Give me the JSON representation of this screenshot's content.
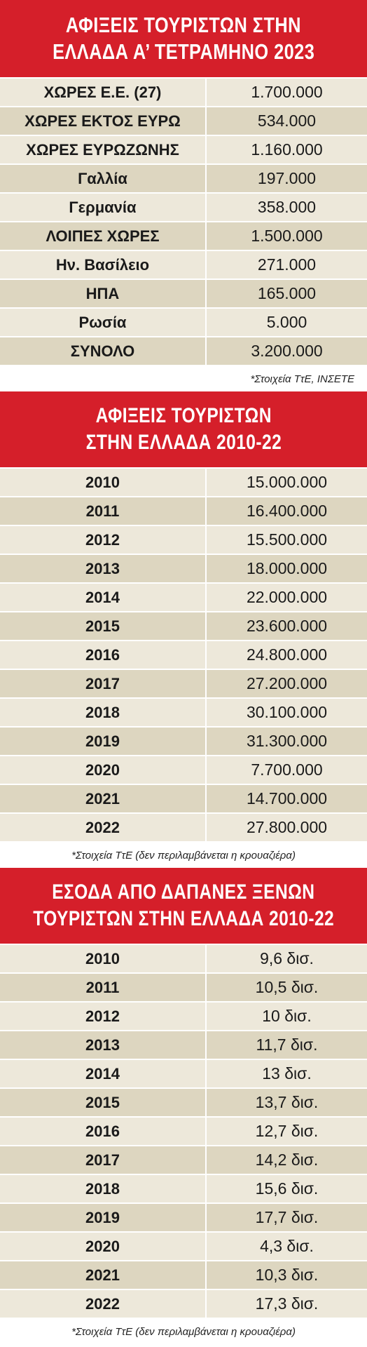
{
  "colors": {
    "header_bg": "#d51f2a",
    "row_light": "#ede8da",
    "row_dark": "#ddd6c0"
  },
  "chart_data": [
    {
      "type": "table",
      "title": [
        "ΑΦΙΞΕΙΣ ΤΟΥΡΙΣΤΩΝ ΣΤΗΝ",
        "ΕΛΛΑΔΑ Α’ ΤΕΤΡΑΜΗΝΟ 2023"
      ],
      "rows": [
        {
          "label": "ΧΩΡΕΣ Ε.Ε. (27)",
          "value": "1.700.000"
        },
        {
          "label": "ΧΩΡΕΣ ΕΚΤΟΣ ΕΥΡΩ",
          "value": "534.000"
        },
        {
          "label": "ΧΩΡΕΣ ΕΥΡΩΖΩΝΗΣ",
          "value": "1.160.000"
        },
        {
          "label": "Γαλλία",
          "value": "197.000"
        },
        {
          "label": "Γερμανία",
          "value": "358.000"
        },
        {
          "label": "ΛΟΙΠΕΣ ΧΩΡΕΣ",
          "value": "1.500.000"
        },
        {
          "label": "Ην. Βασίλειο",
          "value": "271.000"
        },
        {
          "label": "ΗΠΑ",
          "value": "165.000"
        },
        {
          "label": "Ρωσία",
          "value": "5.000"
        },
        {
          "label": "ΣΥΝΟΛΟ",
          "value": "3.200.000"
        }
      ],
      "note": "*Στοιχεία ΤτΕ, ΙΝΣΕΤΕ"
    },
    {
      "type": "table",
      "title": [
        "ΑΦΙΞΕΙΣ ΤΟΥΡΙΣΤΩΝ",
        "ΣΤΗΝ ΕΛΛΑΔΑ 2010-22"
      ],
      "rows": [
        {
          "label": "2010",
          "value": "15.000.000"
        },
        {
          "label": "2011",
          "value": "16.400.000"
        },
        {
          "label": "2012",
          "value": "15.500.000"
        },
        {
          "label": "2013",
          "value": "18.000.000"
        },
        {
          "label": "2014",
          "value": "22.000.000"
        },
        {
          "label": "2015",
          "value": "23.600.000"
        },
        {
          "label": "2016",
          "value": "24.800.000"
        },
        {
          "label": "2017",
          "value": "27.200.000"
        },
        {
          "label": "2018",
          "value": "30.100.000"
        },
        {
          "label": "2019",
          "value": "31.300.000"
        },
        {
          "label": "2020",
          "value": "7.700.000"
        },
        {
          "label": "2021",
          "value": "14.700.000"
        },
        {
          "label": "2022",
          "value": "27.800.000"
        }
      ],
      "note": "*Στοιχεία ΤτΕ (δεν περιλαμβάνεται η κρουαζιέρα)"
    },
    {
      "type": "table",
      "title": [
        "ΕΣΟΔΑ ΑΠΟ ΔΑΠΑΝΕΣ ΞΕΝΩΝ",
        "ΤΟΥΡΙΣΤΩΝ ΣΤΗΝ ΕΛΛΑΔΑ 2010-22"
      ],
      "rows": [
        {
          "label": "2010",
          "value": "9,6 δισ."
        },
        {
          "label": "2011",
          "value": "10,5 δισ."
        },
        {
          "label": "2012",
          "value": "10 δισ."
        },
        {
          "label": "2013",
          "value": "11,7 δισ."
        },
        {
          "label": "2014",
          "value": "13 δισ."
        },
        {
          "label": "2015",
          "value": "13,7 δισ."
        },
        {
          "label": "2016",
          "value": "12,7 δισ."
        },
        {
          "label": "2017",
          "value": "14,2 δισ."
        },
        {
          "label": "2018",
          "value": "15,6 δισ."
        },
        {
          "label": "2019",
          "value": "17,7 δισ."
        },
        {
          "label": "2020",
          "value": "4,3 δισ."
        },
        {
          "label": "2021",
          "value": "10,3 δισ."
        },
        {
          "label": "2022",
          "value": "17,3 δισ."
        }
      ],
      "note": "*Στοιχεία ΤτΕ (δεν περιλαμβάνεται η κρουαζιέρα)"
    }
  ]
}
